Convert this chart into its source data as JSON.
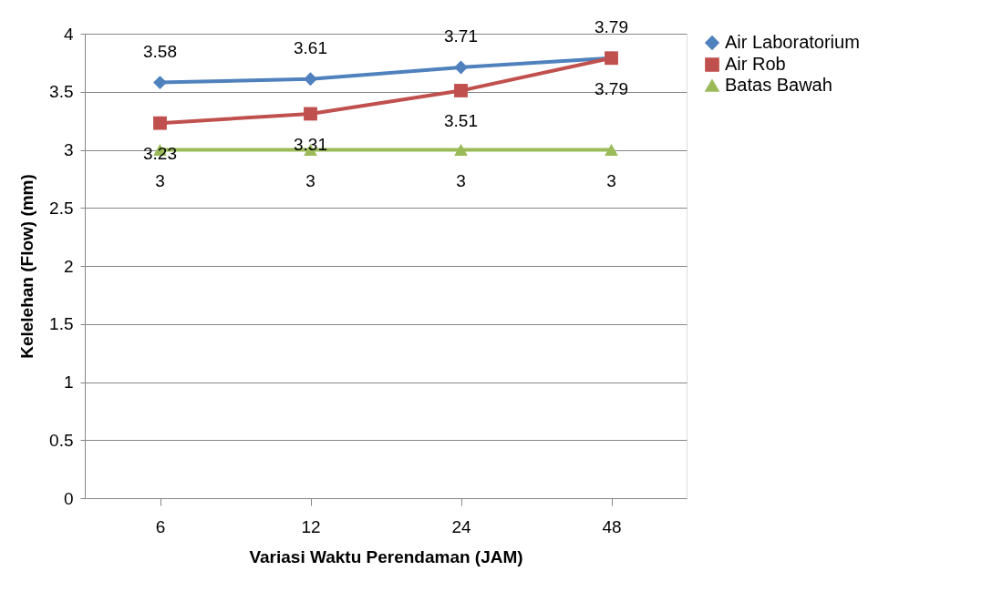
{
  "chart_data": {
    "type": "line",
    "xlabel": "Variasi Waktu Perendaman (JAM)",
    "ylabel": "Kelelehan (Flow) (mm)",
    "categories": [
      "6",
      "12",
      "24",
      "48"
    ],
    "series": [
      {
        "name": "Air Laboratorium",
        "color": "#4f81bd",
        "marker": "diamond",
        "values": [
          3.58,
          3.61,
          3.71,
          3.79
        ]
      },
      {
        "name": "Air Rob",
        "color": "#c0504d",
        "marker": "square",
        "values": [
          3.23,
          3.31,
          3.51,
          3.79
        ]
      },
      {
        "name": "Batas Bawah",
        "color": "#9bbb59",
        "marker": "triangle",
        "values": [
          3,
          3,
          3,
          3
        ]
      }
    ],
    "ylim": [
      0,
      4
    ],
    "yticks": [
      0,
      0.5,
      1,
      1.5,
      2,
      2.5,
      3,
      3.5,
      4
    ],
    "grid": "y",
    "legend": "right",
    "data_labels": true,
    "line_style": "solid"
  }
}
